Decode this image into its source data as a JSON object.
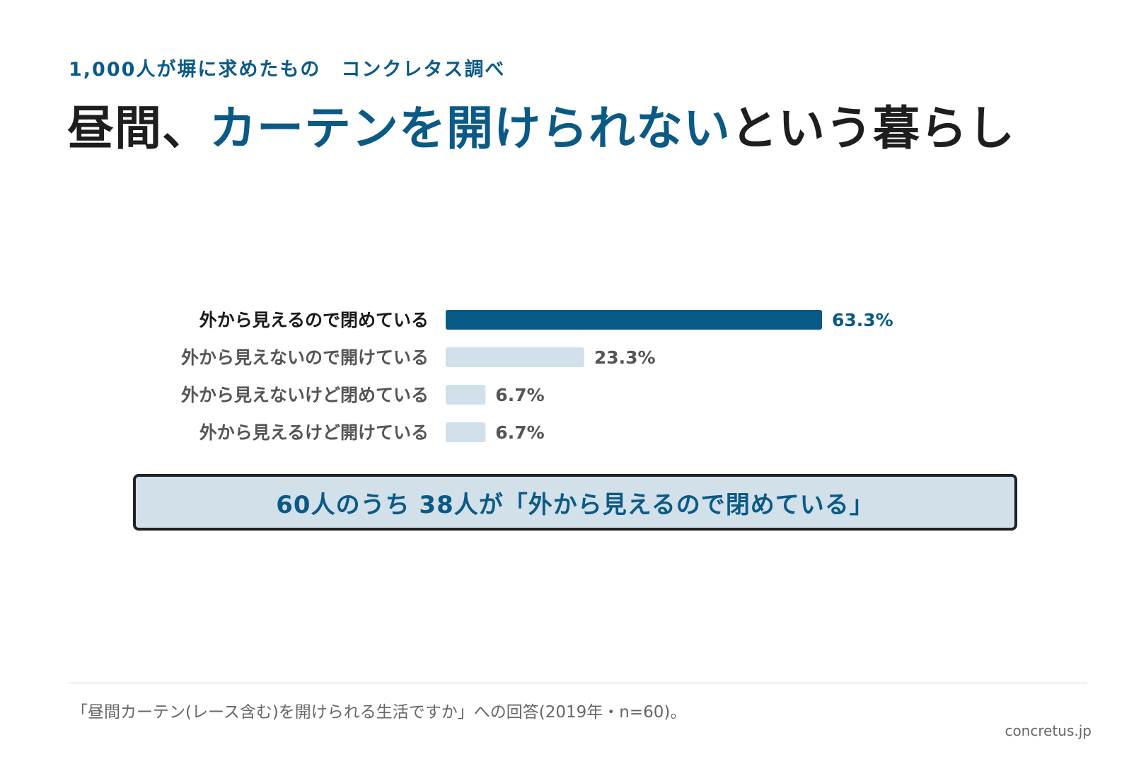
{
  "header": {
    "subtitle": "1,000人が塀に求めたもの　コンクレタス調べ",
    "title_part1": "昼間、",
    "title_part2": "カーテンを開けられない",
    "title_part3": "という暮らし"
  },
  "chart_data": {
    "type": "bar",
    "orientation": "horizontal",
    "categories": [
      "外から見えるので閉めている",
      "外から見えないので開けている",
      "外から見えないけど閉めている",
      "外から見えるけど開けている"
    ],
    "values": [
      63.3,
      23.3,
      6.7,
      6.7
    ],
    "value_labels": [
      "63.3%",
      "23.3%",
      "6.7%",
      "6.7%"
    ],
    "highlight_index": 0,
    "xlim": [
      0,
      63.3
    ],
    "grid": false,
    "colors": {
      "highlight_bar": "#075a85",
      "bar": "#d1e0ea",
      "highlight_label": "#1a1a1a",
      "label": "#555555",
      "highlight_value": "#075a85",
      "value": "#555555"
    }
  },
  "callout": {
    "text": "60人のうち 38人が「外から見えるので閉めている」"
  },
  "footer": {
    "note": "「昼間カーテン(レース含む)を開けられる生活ですか」への回答(2019年・n=60)。",
    "source": "concretus.jp"
  }
}
